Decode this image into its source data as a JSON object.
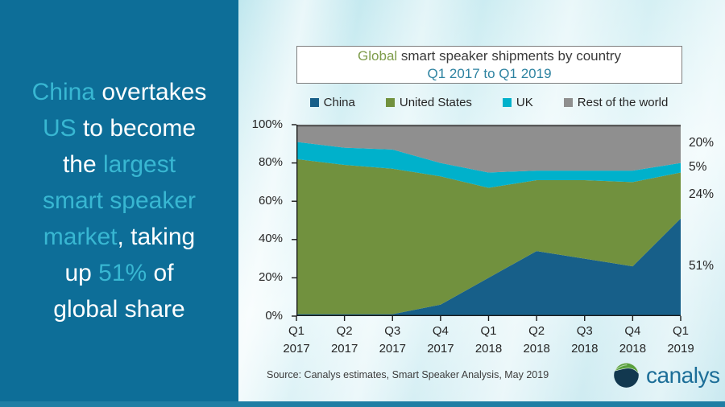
{
  "sidebar": {
    "accent_color": "#38b7d2",
    "lines": [
      [
        {
          "t": "China",
          "accent": true
        },
        {
          "t": " overtakes",
          "accent": false
        }
      ],
      [
        {
          "t": "US",
          "accent": true
        },
        {
          "t": " to become",
          "accent": false
        }
      ],
      [
        {
          "t": "the ",
          "accent": false
        },
        {
          "t": "largest",
          "accent": true
        }
      ],
      [
        {
          "t": "smart speaker",
          "accent": true
        }
      ],
      [
        {
          "t": "market",
          "accent": true
        },
        {
          "t": ", taking",
          "accent": false
        }
      ],
      [
        {
          "t": "up ",
          "accent": false
        },
        {
          "t": "51%",
          "accent": true
        },
        {
          "t": " of",
          "accent": false
        }
      ],
      [
        {
          "t": "global share",
          "accent": false
        }
      ]
    ]
  },
  "header": {
    "title_highlight": "Global",
    "title_rest": " smart speaker shipments by country",
    "subtitle": "Q1 2017 to Q1 2019"
  },
  "chart_data": {
    "type": "area",
    "stacked": true,
    "title": "Global smart speaker shipments by country",
    "subtitle": "Q1 2017 to Q1 2019",
    "legend_position": "top",
    "grid": false,
    "ylim": [
      0,
      100
    ],
    "y_ticks": [
      "0%",
      "20%",
      "40%",
      "60%",
      "80%",
      "100%"
    ],
    "categories": [
      [
        "Q1",
        "2017"
      ],
      [
        "Q2",
        "2017"
      ],
      [
        "Q3",
        "2017"
      ],
      [
        "Q4",
        "2017"
      ],
      [
        "Q1",
        "2018"
      ],
      [
        "Q2",
        "2018"
      ],
      [
        "Q3",
        "2018"
      ],
      [
        "Q4",
        "2018"
      ],
      [
        "Q1",
        "2019"
      ]
    ],
    "series": [
      {
        "name": "China",
        "color": "#175f89",
        "end_label": "51%",
        "values": [
          1,
          1,
          1,
          6,
          20,
          34,
          30,
          26,
          51
        ]
      },
      {
        "name": "United States",
        "color": "#71913e",
        "end_label": "24%",
        "values": [
          81,
          78,
          76,
          67,
          47,
          37,
          41,
          44,
          24
        ]
      },
      {
        "name": "UK",
        "color": "#00b1cb",
        "end_label": "5%",
        "values": [
          9,
          9,
          10,
          7,
          8,
          5,
          5,
          6,
          5
        ]
      },
      {
        "name": "Rest of the world",
        "color": "#8f8f8f",
        "end_label": "20%",
        "values": [
          9,
          12,
          13,
          20,
          25,
          24,
          24,
          24,
          20
        ]
      }
    ],
    "axis_color": "#1a1a1a",
    "top_border_color": "#595959"
  },
  "footer": {
    "source": "Source:  Canalys estimates, Smart Speaker Analysis, May 2019",
    "brand": "canalys"
  }
}
